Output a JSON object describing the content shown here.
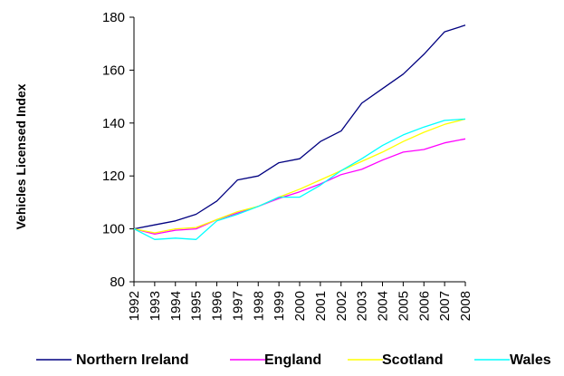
{
  "chart_data": {
    "type": "line",
    "title": "",
    "xlabel": "",
    "ylabel": "Vehicles Licensed Index",
    "ylim": [
      80,
      180
    ],
    "yticks": [
      80,
      100,
      120,
      140,
      160,
      180
    ],
    "grid": false,
    "legend_position": "bottom",
    "x": [
      "1992",
      "1993",
      "1994",
      "1995",
      "1996",
      "1997",
      "1998",
      "1999",
      "2000",
      "2001",
      "2002",
      "2003",
      "2004",
      "2005",
      "2006",
      "2007",
      "2008"
    ],
    "series": [
      {
        "name": "Northern Ireland",
        "color": "#000080",
        "values": [
          100,
          101.5,
          103,
          105.5,
          110.5,
          118.5,
          120,
          125,
          126.5,
          133,
          137,
          147.5,
          153,
          158.5,
          166,
          174.5,
          177
        ]
      },
      {
        "name": "England",
        "color": "#FF00FF",
        "values": [
          100,
          98,
          99.5,
          100,
          103.5,
          106,
          108.5,
          111.5,
          114,
          117,
          120.5,
          122.5,
          126,
          129,
          130,
          132.5,
          134
        ]
      },
      {
        "name": "Scotland",
        "color": "#FFFF00",
        "values": [
          100,
          98.5,
          100,
          100.5,
          103.5,
          106.5,
          108.5,
          112,
          115,
          118.5,
          122,
          125.5,
          129,
          133,
          136.5,
          139.5,
          141.5
        ]
      },
      {
        "name": "Wales",
        "color": "#00FFFF",
        "values": [
          100,
          96,
          96.5,
          96,
          103,
          105.5,
          108.5,
          112,
          112,
          116.5,
          122,
          126.5,
          131.5,
          135.5,
          138.5,
          141,
          141.5
        ]
      }
    ]
  }
}
